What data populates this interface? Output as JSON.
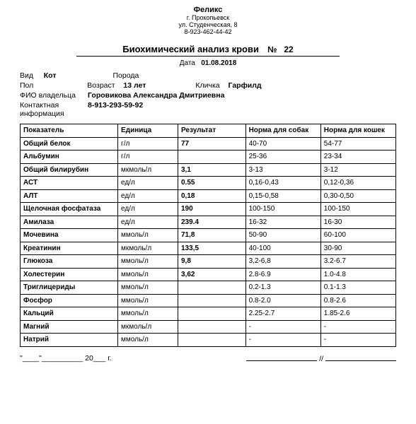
{
  "letterhead": {
    "org": "Феликс",
    "city": "г. Прокопьевск",
    "street": "ул. Студенческая, 8",
    "phone": "8-923-462-44-42"
  },
  "header": {
    "title": "Биохимический анализ крови",
    "no_lbl": "№",
    "no_val": "22",
    "date_lbl": "Дата",
    "date_val": "01.08.2018"
  },
  "patient": {
    "species_lbl": "Вид",
    "species_val": "Кот",
    "breed_lbl": "Порода",
    "breed_val": "",
    "sex_lbl": "Пол",
    "sex_val": "",
    "age_lbl": "Возраст",
    "age_val": "13 лет",
    "name_lbl": "Кличка",
    "name_val": "Гарфилд",
    "owner_lbl": "ФИО владельца",
    "owner_val": "Горовикова Александра Дмитриевна",
    "contact_lbl": "Контактная информация",
    "contact_val": "8-913-293-59-92"
  },
  "table": {
    "cols": {
      "indicator": "Показатель",
      "unit": "Единица",
      "result": "Результат",
      "norm_dog": "Норма для собак",
      "norm_cat": "Норма для кошек"
    },
    "rows": [
      {
        "i": "Общий белок",
        "u": "г/л",
        "r": "77",
        "d": "40-70",
        "c": "54-77"
      },
      {
        "i": "Альбумин",
        "u": "г/л",
        "r": "",
        "d": "25-36",
        "c": "23-34"
      },
      {
        "i": "Общий билирубин",
        "u": "мкмоль/л",
        "r": "3,1",
        "d": "3-13",
        "c": "3-12"
      },
      {
        "i": "АСТ",
        "u": "ед/л",
        "r": "0.55",
        "d": "0,16-0,43",
        "c": "0,12-0,36"
      },
      {
        "i": "АЛТ",
        "u": "ед/л",
        "r": "0,18",
        "d": "0,15-0,58",
        "c": "0,30-0,50"
      },
      {
        "i": "Щелочная фосфатаза",
        "u": "ед/л",
        "r": "190",
        "d": "100-150",
        "c": "100-150"
      },
      {
        "i": "Амилаза",
        "u": "ед/л",
        "r": "239.4",
        "d": "16-32",
        "c": "16-30"
      },
      {
        "i": "Мочевина",
        "u": "ммоль/л",
        "r": "71,8",
        "d": "50-90",
        "c": "60-100"
      },
      {
        "i": "Креатинин",
        "u": "мкмоль/л",
        "r": "133,5",
        "d": "40-100",
        "c": "30-90"
      },
      {
        "i": "Глюкоза",
        "u": "ммоль/л",
        "r": "9,8",
        "d": "3,2-6,8",
        "c": "3.2-6.7"
      },
      {
        "i": "Холестерин",
        "u": "ммоль/л",
        "r": "3,62",
        "d": "2.8-6.9",
        "c": "1.0-4.8"
      },
      {
        "i": "Триглицериды",
        "u": "ммоль/л",
        "r": "",
        "d": "0.2-1.3",
        "c": "0.1-1.3"
      },
      {
        "i": "Фосфор",
        "u": "ммоль/л",
        "r": "",
        "d": "0.8-2.0",
        "c": "0.8-2.6"
      },
      {
        "i": "Кальций",
        "u": "ммоль/л",
        "r": "",
        "d": "2.25-2.7",
        "c": "1.85-2.6"
      },
      {
        "i": "Магний",
        "u": "мкмоль/л",
        "r": "",
        "d": "-",
        "c": "-"
      },
      {
        "i": "Натрий",
        "u": "ммоль/л",
        "r": "",
        "d": "-",
        "c": "-"
      }
    ]
  },
  "footer": {
    "date_tpl_pre": "\"____\"__________ 20___ г.",
    "sep": "//"
  },
  "style": {
    "border_color": "#000000",
    "text_color": "#000000",
    "background": "#ffffff"
  }
}
